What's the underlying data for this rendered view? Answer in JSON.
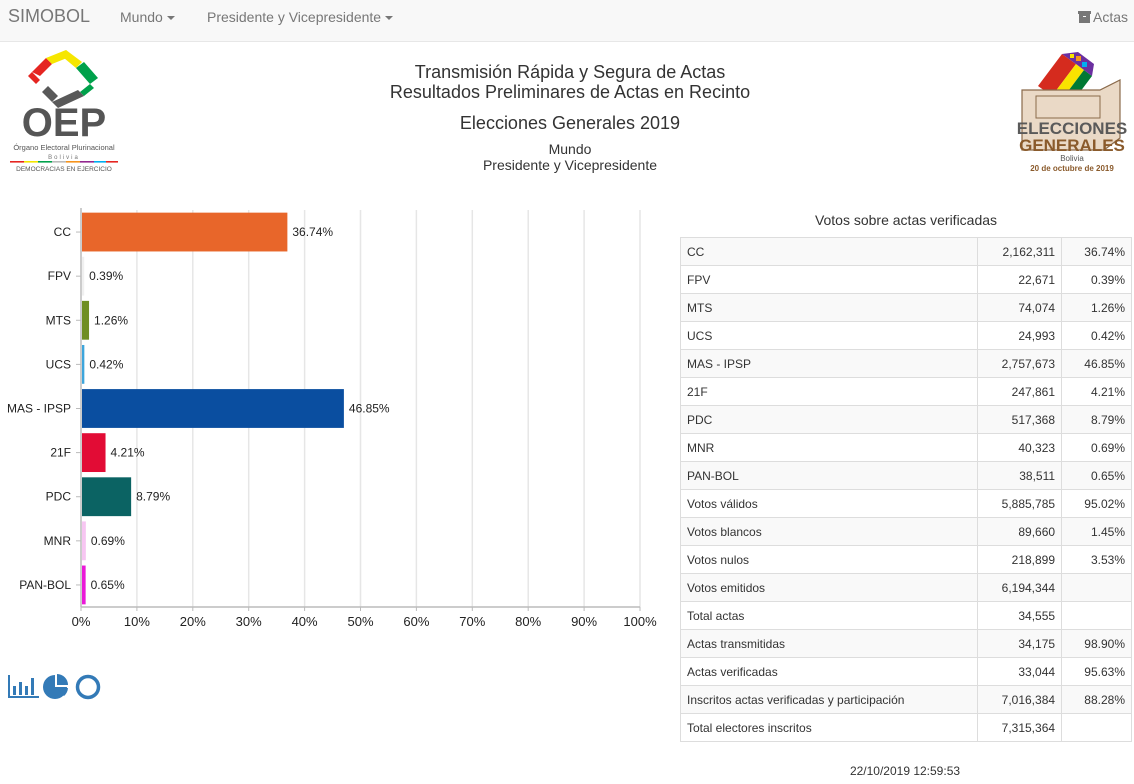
{
  "navbar": {
    "brand": "SIMOBOL",
    "menu_mundo": "Mundo",
    "menu_cargo": "Presidente y Vicepresidente",
    "actas_label": "Actas",
    "actas_icon": "archive-box-icon"
  },
  "header": {
    "line1": "Transmisión Rápida y Segura de Actas",
    "line2": "Resultados Preliminares de Actas en Recinto",
    "election": "Elecciones Generales 2019",
    "region": "Mundo",
    "cargo": "Presidente y Vicepresidente"
  },
  "logos": {
    "oep": {
      "text_main": "OEP",
      "text_sub": "Órgano Electoral Plurinacional",
      "text_country": "Bolivia",
      "text_motto": "DEMOCRACIAS EN EJERCICIO"
    },
    "elecciones": {
      "line1": "ELECCIONES",
      "line2": "GENERALES",
      "line3": "Bolivia",
      "line4": "20 de octubre de 2019"
    }
  },
  "chart_data": {
    "type": "bar",
    "orientation": "horizontal",
    "title": "",
    "xlabel": "",
    "ylabel": "",
    "xlim": [
      0,
      100
    ],
    "grid": true,
    "categories": [
      "CC",
      "FPV",
      "MTS",
      "UCS",
      "MAS - IPSP",
      "21F",
      "PDC",
      "MNR",
      "PAN-BOL"
    ],
    "values": [
      36.74,
      0.39,
      1.26,
      0.42,
      46.85,
      4.21,
      8.79,
      0.69,
      0.65
    ],
    "value_labels": [
      "36.74%",
      "0.39%",
      "1.26%",
      "0.42%",
      "46.85%",
      "4.21%",
      "8.79%",
      "0.69%",
      "0.65%"
    ],
    "colors": [
      "#e8662a",
      "#f0f0f0",
      "#6f8e23",
      "#3da5dc",
      "#0a4ea0",
      "#e20c35",
      "#0b6363",
      "#f7c6f2",
      "#ea1ad8"
    ],
    "x_ticks": [
      0,
      10,
      20,
      30,
      40,
      50,
      60,
      70,
      80,
      90,
      100
    ],
    "x_tick_labels": [
      "0%",
      "10%",
      "20%",
      "30%",
      "40%",
      "50%",
      "60%",
      "70%",
      "80%",
      "90%",
      "100%"
    ]
  },
  "chart_type_icons": [
    "bar-chart-icon",
    "pie-chart-icon",
    "donut-chart-icon"
  ],
  "table": {
    "title": "Votos sobre actas verificadas",
    "rows": [
      {
        "label": "CC",
        "value": "2,162,311",
        "pct": "36.74%"
      },
      {
        "label": "FPV",
        "value": "22,671",
        "pct": "0.39%"
      },
      {
        "label": "MTS",
        "value": "74,074",
        "pct": "1.26%"
      },
      {
        "label": "UCS",
        "value": "24,993",
        "pct": "0.42%"
      },
      {
        "label": "MAS - IPSP",
        "value": "2,757,673",
        "pct": "46.85%"
      },
      {
        "label": "21F",
        "value": "247,861",
        "pct": "4.21%"
      },
      {
        "label": "PDC",
        "value": "517,368",
        "pct": "8.79%"
      },
      {
        "label": "MNR",
        "value": "40,323",
        "pct": "0.69%"
      },
      {
        "label": "PAN-BOL",
        "value": "38,511",
        "pct": "0.65%"
      },
      {
        "label": "Votos válidos",
        "value": "5,885,785",
        "pct": "95.02%"
      },
      {
        "label": "Votos blancos",
        "value": "89,660",
        "pct": "1.45%"
      },
      {
        "label": "Votos nulos",
        "value": "218,899",
        "pct": "3.53%"
      },
      {
        "label": "Votos emitidos",
        "value": "6,194,344",
        "pct": ""
      },
      {
        "label": "Total actas",
        "value": "34,555",
        "pct": ""
      },
      {
        "label": "Actas transmitidas",
        "value": "34,175",
        "pct": "98.90%"
      },
      {
        "label": "Actas verificadas",
        "value": "33,044",
        "pct": "95.63%"
      },
      {
        "label": "Inscritos actas verificadas y participación",
        "value": "7,016,384",
        "pct": "88.28%"
      },
      {
        "label": "Total electores inscritos",
        "value": "7,315,364",
        "pct": ""
      }
    ]
  },
  "footer": {
    "timestamp": "22/10/2019 12:59:53"
  },
  "theme": {
    "navbar_bg": "#f8f8f8",
    "navbar_text": "#777777",
    "icon_blue": "#337ab7"
  }
}
